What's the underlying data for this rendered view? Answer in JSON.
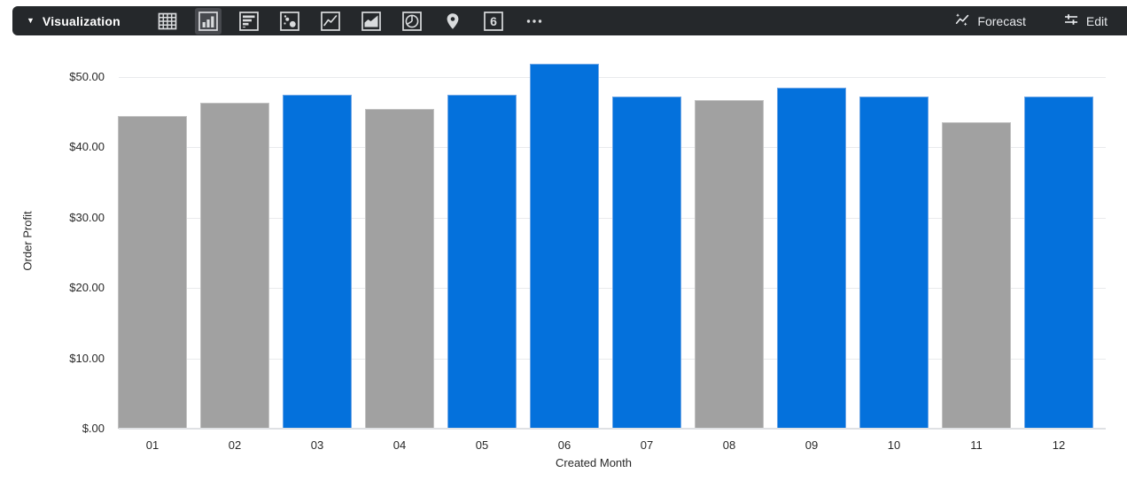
{
  "toolbar": {
    "title": "Visualization",
    "single_value_digit": "6",
    "buttons": [
      {
        "name": "table",
        "selected": false
      },
      {
        "name": "column-chart",
        "selected": true
      },
      {
        "name": "bar-chart",
        "selected": false
      },
      {
        "name": "scatter",
        "selected": false
      },
      {
        "name": "line-chart",
        "selected": false
      },
      {
        "name": "area-chart",
        "selected": false
      },
      {
        "name": "pie-chart",
        "selected": false
      },
      {
        "name": "map",
        "selected": false
      },
      {
        "name": "single-value",
        "selected": false
      },
      {
        "name": "more",
        "selected": false
      }
    ],
    "forecast_label": "Forecast",
    "edit_label": "Edit",
    "colors": {
      "background": "#25282b",
      "icon": "#d9dbdd",
      "selected_background": "#47494e",
      "text": "#e8eaed"
    }
  },
  "chart_data": {
    "type": "bar",
    "title": "",
    "xlabel": "Created Month",
    "ylabel": "Order Profit",
    "categories": [
      "01",
      "02",
      "03",
      "04",
      "05",
      "06",
      "07",
      "08",
      "09",
      "10",
      "11",
      "12"
    ],
    "values": [
      44.5,
      46.3,
      47.5,
      45.5,
      47.5,
      51.9,
      47.2,
      46.7,
      48.5,
      47.2,
      43.6,
      47.2
    ],
    "bar_color_keys": [
      "gray",
      "gray",
      "blue",
      "gray",
      "blue",
      "blue",
      "blue",
      "gray",
      "blue",
      "blue",
      "gray",
      "blue"
    ],
    "palette": {
      "blue": "#0471dc",
      "gray": "#a1a1a1"
    },
    "palette_border": {
      "blue": "#6ea6e6",
      "gray": "#c2c2c2"
    },
    "y_ticks": [
      {
        "label": "$50.00",
        "value": 50
      },
      {
        "label": "$40.00",
        "value": 40
      },
      {
        "label": "$30.00",
        "value": 30
      },
      {
        "label": "$20.00",
        "value": 20
      },
      {
        "label": "$10.00",
        "value": 10
      },
      {
        "label": "$.00",
        "value": 0
      }
    ],
    "ylim": [
      0,
      53.5
    ],
    "grid": true,
    "legend": "none"
  }
}
